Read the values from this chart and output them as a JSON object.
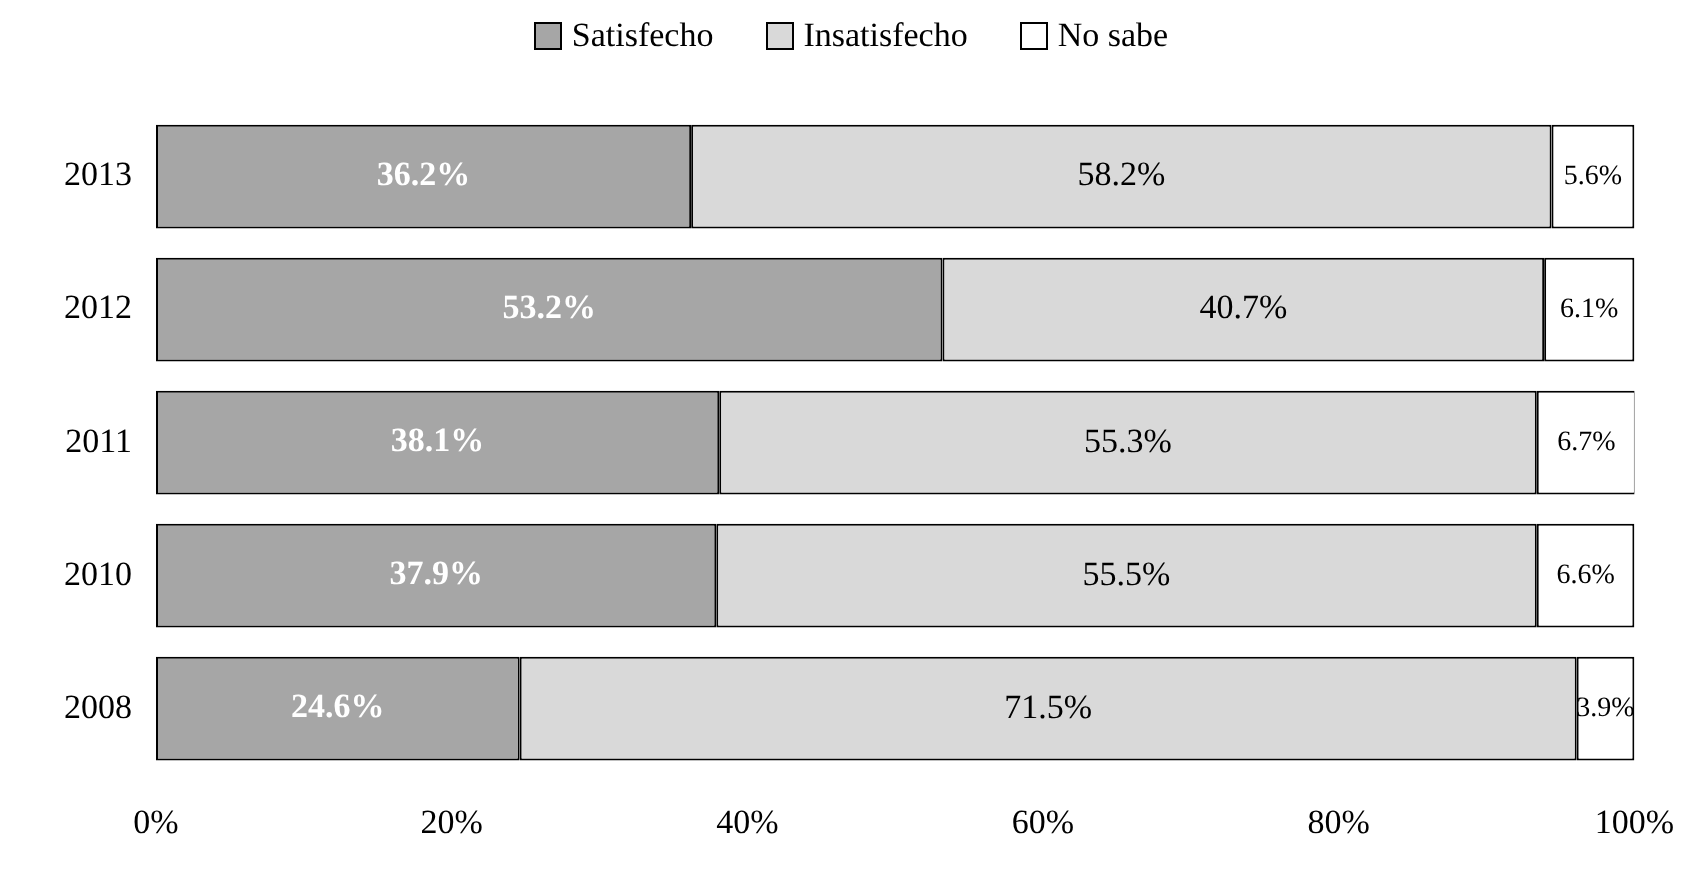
{
  "chart_data": {
    "type": "bar",
    "orientation": "horizontal",
    "stacked": true,
    "legend": "top",
    "grid": false,
    "categories": [
      "2013",
      "2012",
      "2011",
      "2010",
      "2008"
    ],
    "series": [
      {
        "name": "Satisfecho",
        "color": "#a6a6a6",
        "values": [
          36.2,
          53.2,
          38.1,
          37.9,
          24.6
        ],
        "value_labels": [
          "36.2%",
          "53.2%",
          "38.1%",
          "37.9%",
          "24.6%"
        ]
      },
      {
        "name": "Insatisfecho",
        "color": "#d9d9d9",
        "values": [
          58.2,
          40.7,
          55.3,
          55.5,
          71.5
        ],
        "value_labels": [
          "58.2%",
          "40.7%",
          "55.3%",
          "55.5%",
          "71.5%"
        ]
      },
      {
        "name": "No sabe",
        "color": "#ffffff",
        "values": [
          5.6,
          6.1,
          6.7,
          6.6,
          3.9
        ],
        "value_labels": [
          "5.6%",
          "6.1%",
          "6.7%",
          "6.6%",
          "3.9%"
        ]
      }
    ],
    "xlim": [
      0,
      100
    ],
    "xticks": [
      {
        "value": 0,
        "label": "0%"
      },
      {
        "value": 20,
        "label": "20%"
      },
      {
        "value": 40,
        "label": "40%"
      },
      {
        "value": 60,
        "label": "60%"
      },
      {
        "value": 80,
        "label": "80%"
      },
      {
        "value": 100,
        "label": "100%"
      }
    ]
  }
}
